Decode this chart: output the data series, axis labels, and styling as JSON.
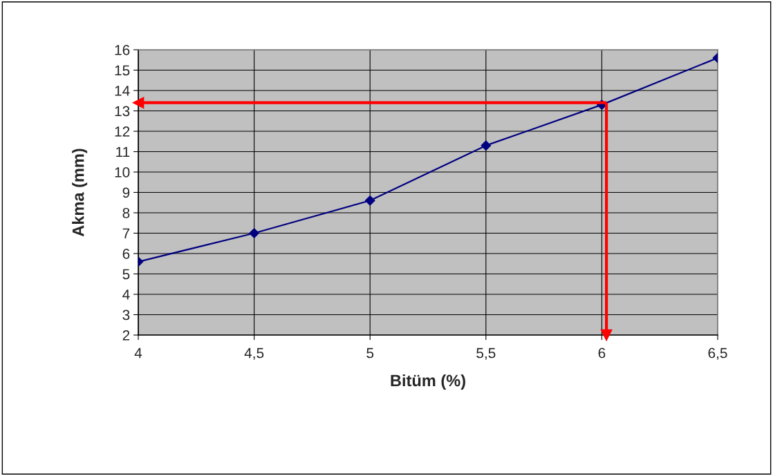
{
  "chart_data": {
    "type": "line",
    "xlabel": "Bitüm (%)",
    "ylabel": "Akma (mm)",
    "x": [
      4,
      4.5,
      5,
      5.5,
      6,
      6.5
    ],
    "series": [
      {
        "color": "#000080",
        "values": [
          5.6,
          7.0,
          8.6,
          11.3,
          13.3,
          15.6
        ]
      }
    ],
    "xlim": [
      4,
      6.5
    ],
    "xticks": [
      4,
      {
        "value": 4.5,
        "label": "4,5"
      },
      5,
      {
        "value": 5.5,
        "label": "5,5"
      },
      6,
      {
        "value": 6.5,
        "label": "6,5"
      }
    ],
    "ylim": [
      2,
      16
    ],
    "yticks": [
      2,
      3,
      4,
      5,
      6,
      7,
      8,
      9,
      10,
      11,
      12,
      13,
      14,
      15,
      16
    ],
    "ref_lines": [
      {
        "axis": "y",
        "value": 13.4,
        "color": "#ff0000"
      },
      {
        "axis": "x",
        "value": 6.02,
        "color": "#ff0000"
      }
    ],
    "grid": true,
    "marker": "diamond",
    "line_style": "solid",
    "legend": false
  }
}
